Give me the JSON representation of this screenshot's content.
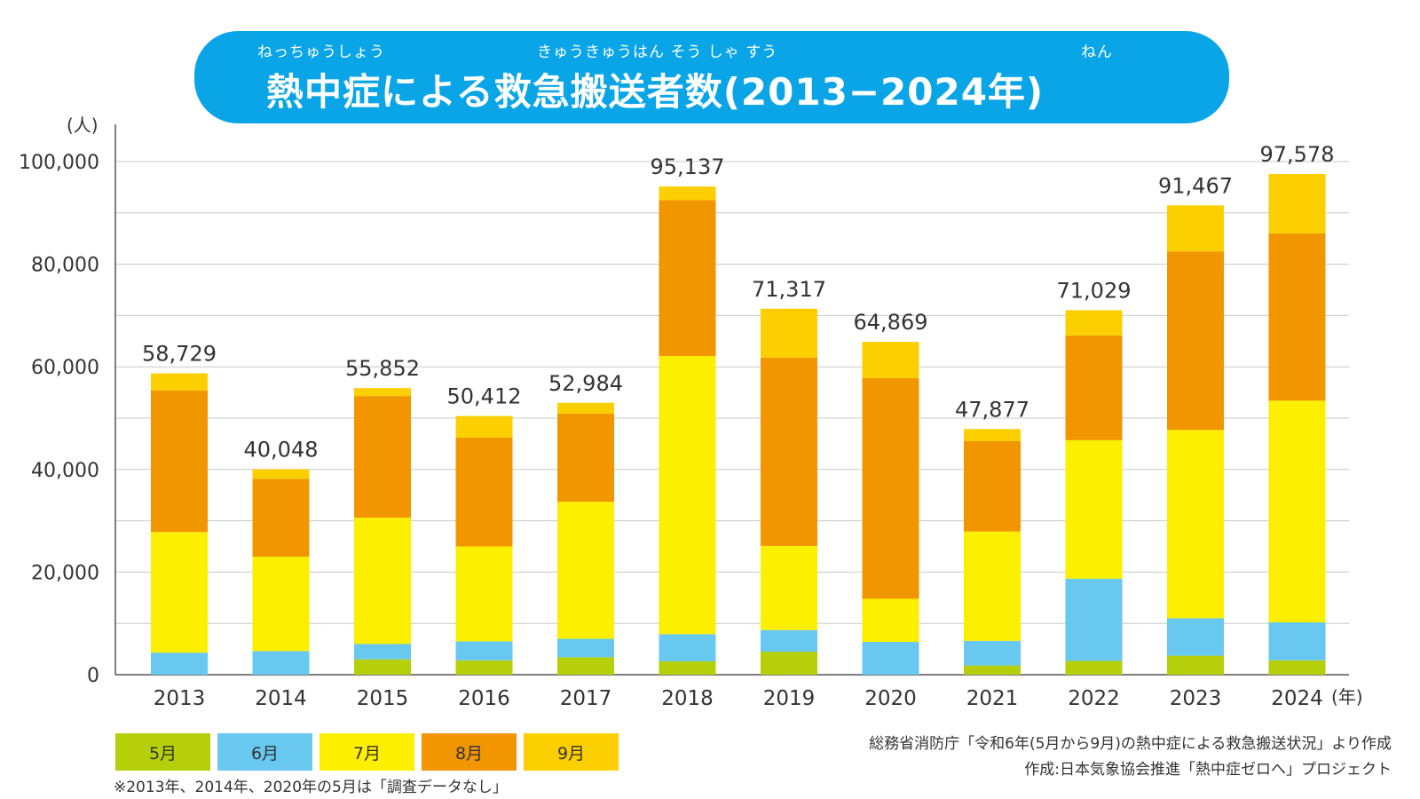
{
  "title": {
    "main": "熱中症による救急搬送者数(2013−2024年)",
    "ruby_1": "ねっちゅうしょう",
    "ruby_2": "きゅうきゅうはん そう しゃ すう",
    "ruby_3": "ねん"
  },
  "chart_data": {
    "type": "bar",
    "stacked": true,
    "title": "熱中症による救急搬送者数(2013−2024年)",
    "ylabel": "(人)",
    "xlabel": "(年)",
    "ylim": [
      0,
      100000
    ],
    "yticks": [
      0,
      20000,
      40000,
      60000,
      80000,
      100000
    ],
    "ytick_labels": [
      "0",
      "20,000",
      "40,000",
      "60,000",
      "80,000",
      "100,000"
    ],
    "categories": [
      "2013",
      "2014",
      "2015",
      "2016",
      "2017",
      "2018",
      "2019",
      "2020",
      "2021",
      "2022",
      "2023",
      "2024"
    ],
    "series": [
      {
        "name": "5月",
        "color": "#b5cf0a",
        "values": [
          0,
          0,
          3000,
          2800,
          3400,
          2600,
          4500,
          0,
          1800,
          2700,
          3700,
          2800
        ]
      },
      {
        "name": "6月",
        "color": "#68c8f0",
        "values": [
          4300,
          4600,
          3000,
          3700,
          3600,
          5300,
          4200,
          6400,
          4800,
          16000,
          7300,
          7400
        ]
      },
      {
        "name": "7月",
        "color": "#fcef00",
        "values": [
          23500,
          18400,
          24600,
          18500,
          26700,
          54200,
          16400,
          8400,
          21300,
          27000,
          36700,
          43200
        ]
      },
      {
        "name": "8月",
        "color": "#f29600",
        "values": [
          27600,
          15200,
          23700,
          21200,
          17200,
          30400,
          36700,
          43000,
          17600,
          20400,
          34800,
          32600
        ]
      },
      {
        "name": "9月",
        "color": "#fccf00",
        "values": [
          3300,
          1800,
          1500,
          4200,
          2100,
          2600,
          9500,
          7100,
          2400,
          4900,
          8967,
          11578
        ]
      }
    ],
    "totals": [
      58729,
      40048,
      55852,
      50412,
      52984,
      95137,
      71317,
      64869,
      47877,
      71029,
      91467,
      97578
    ],
    "total_labels": [
      "58,729",
      "40,048",
      "55,852",
      "50,412",
      "52,984",
      "95,137",
      "71,317",
      "64,869",
      "47,877",
      "71,029",
      "91,467",
      "97,578"
    ]
  },
  "legend": [
    {
      "label": "5月",
      "color": "#b5cf0a"
    },
    {
      "label": "6月",
      "color": "#68c8f0"
    },
    {
      "label": "7月",
      "color": "#fcef00"
    },
    {
      "label": "8月",
      "color": "#f29600"
    },
    {
      "label": "9月",
      "color": "#fccf00"
    }
  ],
  "note": "※2013年、2014年、2020年の5月は「調査データなし」",
  "source": {
    "line1": "総務省消防庁「令和6年(5月から9月)の熱中症による救急搬送状況」より作成",
    "line2": "作成:日本気象協会推進「熱中症ゼロへ」プロジェクト"
  }
}
